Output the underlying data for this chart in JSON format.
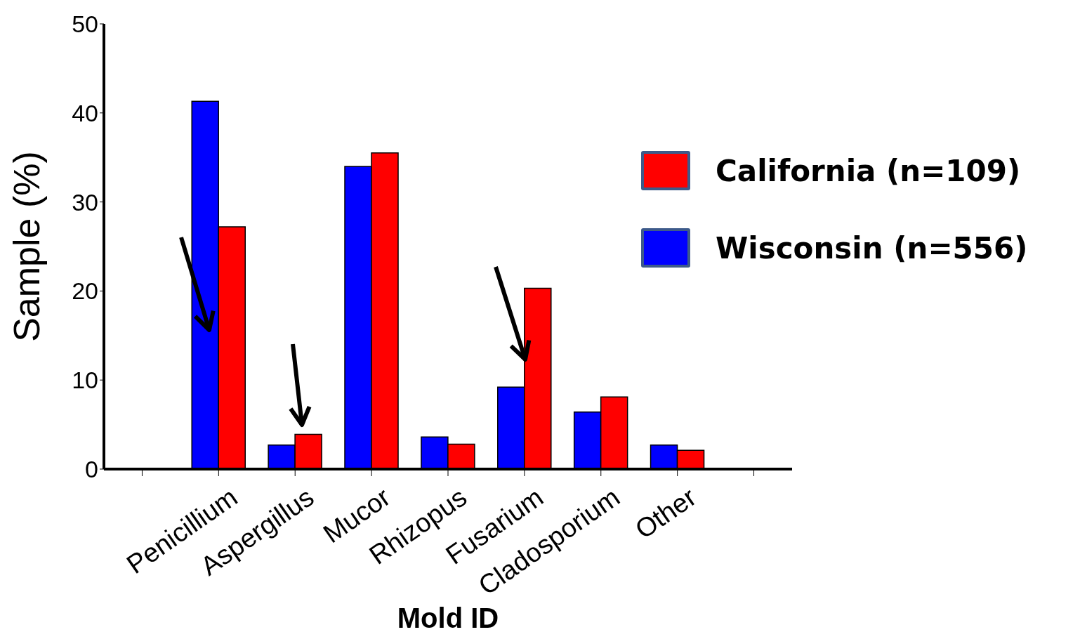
{
  "chart_data": {
    "type": "bar",
    "xlabel": "Mold ID",
    "ylabel": "Sample (%)",
    "categories": [
      null,
      "Penicillium",
      "Aspergillus",
      "Mucor",
      "Rhizopus",
      "Fusarium",
      "Cladosporium",
      "Other",
      null
    ],
    "series": [
      {
        "name": "Wisconsin (n=556)",
        "color": "#0000ff",
        "values": [
          null,
          41.3,
          2.7,
          34.0,
          3.6,
          9.2,
          6.4,
          2.7,
          null
        ]
      },
      {
        "name": "California (n=109)",
        "color": "#ff0000",
        "values": [
          null,
          27.2,
          3.9,
          35.5,
          2.8,
          20.3,
          8.1,
          2.1,
          null
        ]
      }
    ],
    "ylim": [
      0,
      50
    ],
    "yticks": [
      0,
      10,
      20,
      30,
      40,
      50
    ],
    "legend": "right"
  }
}
